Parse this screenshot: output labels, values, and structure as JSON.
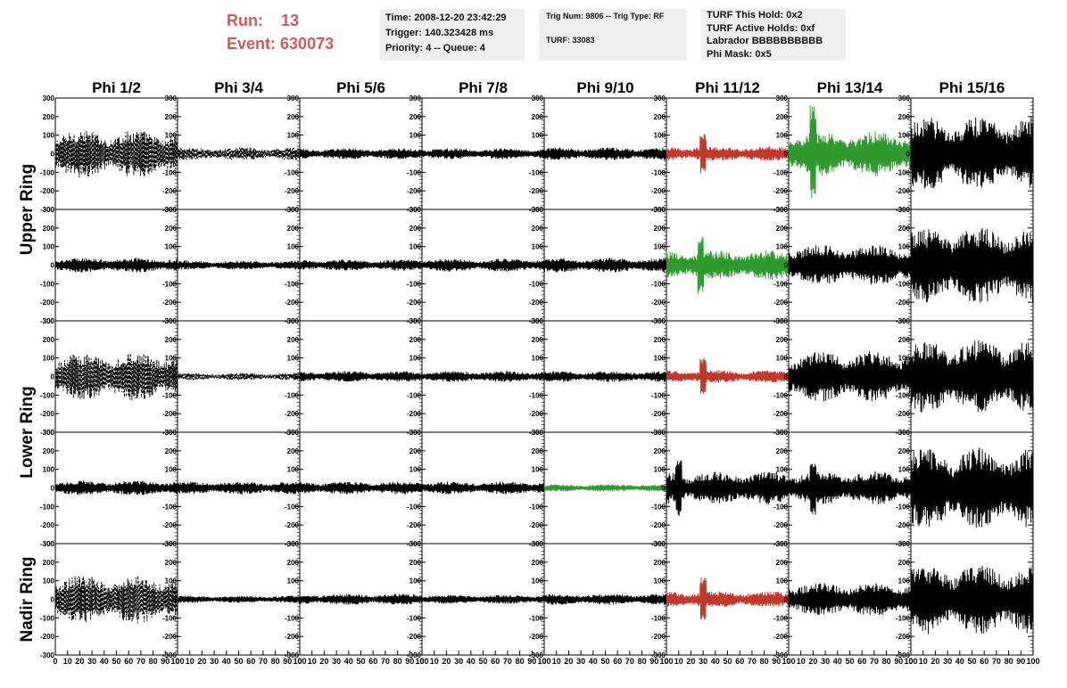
{
  "header": {
    "run_label": "Run:",
    "run_value": "13",
    "event_label": "Event:",
    "event_value": "630073",
    "time": "Time: 2008-12-20 23:42:29",
    "trigger": "Trigger: 140.323428 ms",
    "priority": "Priority: 4 -- Queue: 4",
    "trig_num": "Trig Num: 9806 -- Trig Type: RF",
    "turf": "TURF: 33083",
    "turf_this_hold": "TURF This Hold: 0x2",
    "turf_active_holds": "TURF Active Holds: 0xf",
    "labrador": "Labrador BBBBBBBBBB",
    "phi_mask": "Phi Mask: 0x5"
  },
  "colors": {
    "header_red": "#d05a5a",
    "trace_black": "#000000",
    "trace_red": "#c0392b",
    "trace_green": "#2e9a2e",
    "box_gray": "#efefef"
  },
  "chart_data": {
    "type": "line",
    "columns": [
      "Phi 1/2",
      "Phi 3/4",
      "Phi 5/6",
      "Phi 7/8",
      "Phi 9/10",
      "Phi 11/12",
      "Phi 13/14",
      "Phi 15/16"
    ],
    "row_groups": [
      "Upper Ring",
      "Lower Ring",
      "Nadir Ring"
    ],
    "xlim": [
      0,
      100
    ],
    "ylim": [
      -300,
      300
    ],
    "yticks": [
      -300,
      -200,
      -100,
      0,
      100,
      200,
      300
    ],
    "ytick_labels": [
      "-300",
      "-200",
      "-100",
      "0",
      "100",
      "200",
      "300"
    ],
    "xtick_labels": [
      "0",
      "10",
      "20",
      "30",
      "40",
      "50",
      "60",
      "70",
      "80",
      "90",
      "100"
    ],
    "panels": [
      [
        {
          "amplitude": 130,
          "color": "black",
          "style": "dashed"
        },
        {
          "amplitude": 35,
          "color": "black",
          "style": "dashed"
        },
        {
          "amplitude": 30,
          "color": "black",
          "style": "solid"
        },
        {
          "amplitude": 30,
          "color": "black",
          "style": "solid"
        },
        {
          "amplitude": 35,
          "color": "black",
          "style": "solid"
        },
        {
          "amplitude": 40,
          "color": "red",
          "style": "solid",
          "spike_at": 30,
          "spike_amp": 110
        },
        {
          "amplitude": 120,
          "color": "green",
          "style": "solid",
          "spike_at": 20,
          "spike_amp": 260
        },
        {
          "amplitude": 200,
          "color": "black",
          "style": "solid"
        }
      ],
      [
        {
          "amplitude": 40,
          "color": "black",
          "style": "solid"
        },
        {
          "amplitude": 25,
          "color": "black",
          "style": "solid"
        },
        {
          "amplitude": 30,
          "color": "black",
          "style": "solid"
        },
        {
          "amplitude": 35,
          "color": "black",
          "style": "solid"
        },
        {
          "amplitude": 40,
          "color": "black",
          "style": "solid"
        },
        {
          "amplitude": 80,
          "color": "green",
          "style": "solid",
          "spike_at": 28,
          "spike_amp": 160
        },
        {
          "amplitude": 110,
          "color": "black",
          "style": "solid"
        },
        {
          "amplitude": 210,
          "color": "black",
          "style": "solid"
        }
      ],
      [
        {
          "amplitude": 130,
          "color": "black",
          "style": "dashed"
        },
        {
          "amplitude": 20,
          "color": "black",
          "style": "dashed"
        },
        {
          "amplitude": 30,
          "color": "black",
          "style": "solid"
        },
        {
          "amplitude": 30,
          "color": "black",
          "style": "solid"
        },
        {
          "amplitude": 30,
          "color": "black",
          "style": "solid"
        },
        {
          "amplitude": 35,
          "color": "red",
          "style": "solid",
          "spike_at": 30,
          "spike_amp": 100
        },
        {
          "amplitude": 140,
          "color": "black",
          "style": "solid"
        },
        {
          "amplitude": 200,
          "color": "black",
          "style": "solid"
        }
      ],
      [
        {
          "amplitude": 40,
          "color": "black",
          "style": "solid"
        },
        {
          "amplitude": 35,
          "color": "black",
          "style": "solid"
        },
        {
          "amplitude": 35,
          "color": "black",
          "style": "solid"
        },
        {
          "amplitude": 35,
          "color": "black",
          "style": "solid"
        },
        {
          "amplitude": 20,
          "color": "green",
          "style": "solid"
        },
        {
          "amplitude": 90,
          "color": "black",
          "style": "solid",
          "spike_at": 10,
          "spike_amp": 160
        },
        {
          "amplitude": 90,
          "color": "black",
          "style": "solid",
          "spike_at": 20,
          "spike_amp": 150
        },
        {
          "amplitude": 220,
          "color": "black",
          "style": "solid"
        }
      ],
      [
        {
          "amplitude": 130,
          "color": "black",
          "style": "dashed"
        },
        {
          "amplitude": 20,
          "color": "black",
          "style": "solid"
        },
        {
          "amplitude": 30,
          "color": "black",
          "style": "solid"
        },
        {
          "amplitude": 25,
          "color": "black",
          "style": "solid"
        },
        {
          "amplitude": 30,
          "color": "black",
          "style": "solid"
        },
        {
          "amplitude": 45,
          "color": "red",
          "style": "solid",
          "spike_at": 30,
          "spike_amp": 120
        },
        {
          "amplitude": 90,
          "color": "black",
          "style": "solid"
        },
        {
          "amplitude": 190,
          "color": "black",
          "style": "solid"
        }
      ]
    ]
  }
}
